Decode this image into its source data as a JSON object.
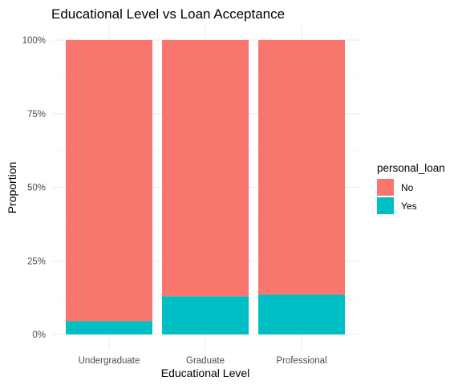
{
  "chart_data": {
    "type": "bar",
    "stacked": true,
    "title": "Educational Level vs Loan Acceptance",
    "xlabel": "Educational Level",
    "ylabel": "Proportion",
    "categories": [
      "Undergraduate",
      "Graduate",
      "Professional"
    ],
    "series": [
      {
        "name": "No",
        "values": [
          0.955,
          0.87,
          0.865
        ],
        "color": "#F8766D"
      },
      {
        "name": "Yes",
        "values": [
          0.045,
          0.13,
          0.135
        ],
        "color": "#00BFC4"
      }
    ],
    "ylim": [
      0,
      1
    ],
    "yticks": [
      0,
      0.25,
      0.5,
      0.75,
      1
    ],
    "ytick_labels": [
      "0%",
      "25%",
      "50%",
      "75%",
      "100%"
    ],
    "grid": true,
    "legend": {
      "title": "personal_loan",
      "placement": "right"
    }
  }
}
